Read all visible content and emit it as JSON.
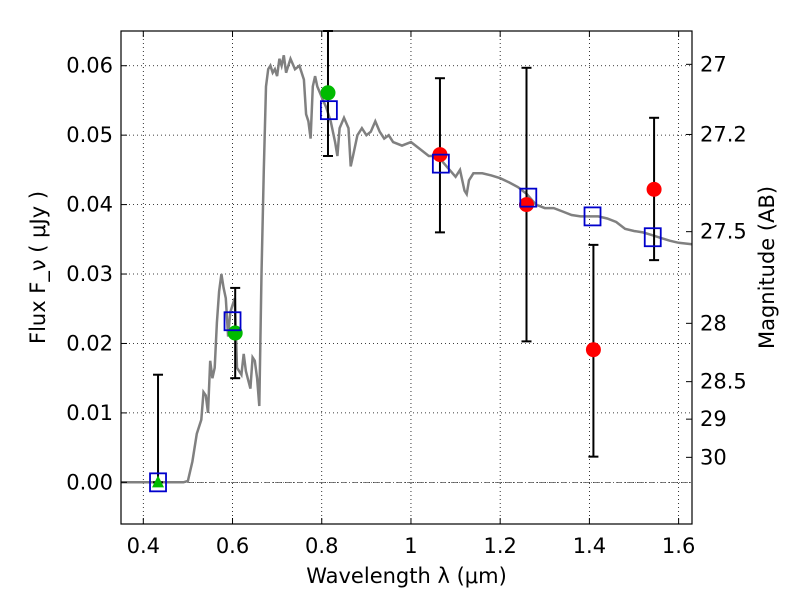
{
  "chart_data": {
    "type": "scatter",
    "xlabel": "Wavelength λ (μm)",
    "ylabel": "Flux F_ν ( μJy )",
    "y2label": "Magnitude (AB)",
    "xlim": [
      0.35,
      1.63
    ],
    "ylim": [
      -0.006,
      0.065
    ],
    "xticks": [
      0.4,
      0.6,
      0.8,
      1.0,
      1.2,
      1.4,
      1.6
    ],
    "xtick_labels": [
      "0.4",
      "0.6",
      "0.8",
      "1",
      "1.2",
      "1.4",
      "1.6"
    ],
    "yticks": [
      0.0,
      0.01,
      0.02,
      0.03,
      0.04,
      0.05,
      0.06
    ],
    "ytick_labels": [
      "0.00",
      "0.01",
      "0.02",
      "0.03",
      "0.04",
      "0.05",
      "0.06"
    ],
    "y2ticks": [
      {
        "flux": 0.0602,
        "label": "27"
      },
      {
        "flux": 0.0501,
        "label": "27.2"
      },
      {
        "flux": 0.0361,
        "label": "27.5"
      },
      {
        "flux": 0.0229,
        "label": "28"
      },
      {
        "flux": 0.0145,
        "label": "28.5"
      },
      {
        "flux": 0.0091,
        "label": "29"
      },
      {
        "flux": 0.0036,
        "label": "30"
      }
    ],
    "grid": true,
    "colors": {
      "spectrum": "#808080",
      "green": "#00bb00",
      "red": "#ff0000",
      "model": "#0000cc",
      "errorbar": "#000000",
      "zero_line": "#555555"
    },
    "spectrum": [
      [
        0.35,
        0.0
      ],
      [
        0.49,
        0.0
      ],
      [
        0.5,
        0.0002
      ],
      [
        0.51,
        0.003
      ],
      [
        0.52,
        0.007
      ],
      [
        0.53,
        0.009
      ],
      [
        0.535,
        0.013
      ],
      [
        0.54,
        0.0125
      ],
      [
        0.545,
        0.01
      ],
      [
        0.55,
        0.0175
      ],
      [
        0.555,
        0.015
      ],
      [
        0.56,
        0.0165
      ],
      [
        0.565,
        0.023
      ],
      [
        0.57,
        0.0275
      ],
      [
        0.575,
        0.03
      ],
      [
        0.58,
        0.028
      ],
      [
        0.585,
        0.0265
      ],
      [
        0.59,
        0.021
      ],
      [
        0.595,
        0.0245
      ],
      [
        0.6,
        0.0255
      ],
      [
        0.605,
        0.0265
      ],
      [
        0.61,
        0.0165
      ],
      [
        0.62,
        0.0155
      ],
      [
        0.625,
        0.0185
      ],
      [
        0.63,
        0.016
      ],
      [
        0.64,
        0.0135
      ],
      [
        0.645,
        0.018
      ],
      [
        0.65,
        0.0175
      ],
      [
        0.655,
        0.015
      ],
      [
        0.66,
        0.011
      ],
      [
        0.665,
        0.03
      ],
      [
        0.67,
        0.045
      ],
      [
        0.675,
        0.057
      ],
      [
        0.68,
        0.0595
      ],
      [
        0.685,
        0.06
      ],
      [
        0.69,
        0.059
      ],
      [
        0.695,
        0.0595
      ],
      [
        0.7,
        0.0585
      ],
      [
        0.705,
        0.061
      ],
      [
        0.71,
        0.06
      ],
      [
        0.715,
        0.0615
      ],
      [
        0.72,
        0.059
      ],
      [
        0.73,
        0.061
      ],
      [
        0.74,
        0.0595
      ],
      [
        0.75,
        0.06
      ],
      [
        0.76,
        0.058
      ],
      [
        0.765,
        0.053
      ],
      [
        0.77,
        0.052
      ],
      [
        0.775,
        0.0495
      ],
      [
        0.78,
        0.057
      ],
      [
        0.785,
        0.0585
      ],
      [
        0.79,
        0.057
      ],
      [
        0.8,
        0.0555
      ],
      [
        0.81,
        0.054
      ],
      [
        0.82,
        0.052
      ],
      [
        0.83,
        0.049
      ],
      [
        0.835,
        0.047
      ],
      [
        0.84,
        0.051
      ],
      [
        0.85,
        0.0525
      ],
      [
        0.86,
        0.051
      ],
      [
        0.865,
        0.0455
      ],
      [
        0.87,
        0.047
      ],
      [
        0.88,
        0.05
      ],
      [
        0.89,
        0.051
      ],
      [
        0.9,
        0.05
      ],
      [
        0.91,
        0.0505
      ],
      [
        0.92,
        0.052
      ],
      [
        0.93,
        0.0505
      ],
      [
        0.94,
        0.0495
      ],
      [
        0.95,
        0.05
      ],
      [
        0.96,
        0.049
      ],
      [
        0.98,
        0.0485
      ],
      [
        1.0,
        0.049
      ],
      [
        1.02,
        0.048
      ],
      [
        1.04,
        0.047
      ],
      [
        1.06,
        0.047
      ],
      [
        1.08,
        0.0455
      ],
      [
        1.1,
        0.044
      ],
      [
        1.11,
        0.045
      ],
      [
        1.12,
        0.042
      ],
      [
        1.125,
        0.0415
      ],
      [
        1.13,
        0.0435
      ],
      [
        1.14,
        0.0445
      ],
      [
        1.16,
        0.0445
      ],
      [
        1.18,
        0.0442
      ],
      [
        1.2,
        0.0438
      ],
      [
        1.22,
        0.0432
      ],
      [
        1.24,
        0.0425
      ],
      [
        1.26,
        0.0415
      ],
      [
        1.28,
        0.04
      ],
      [
        1.3,
        0.0395
      ],
      [
        1.32,
        0.0395
      ],
      [
        1.34,
        0.039
      ],
      [
        1.36,
        0.0385
      ],
      [
        1.38,
        0.0383
      ],
      [
        1.4,
        0.0383
      ],
      [
        1.42,
        0.0383
      ],
      [
        1.44,
        0.038
      ],
      [
        1.46,
        0.0375
      ],
      [
        1.48,
        0.0365
      ],
      [
        1.5,
        0.0362
      ],
      [
        1.52,
        0.036
      ],
      [
        1.54,
        0.0356
      ],
      [
        1.56,
        0.0352
      ],
      [
        1.58,
        0.0348
      ],
      [
        1.6,
        0.0345
      ],
      [
        1.63,
        0.0343
      ]
    ],
    "observations": [
      {
        "x": 0.433,
        "y": 0.0,
        "yerr_low": 0.0,
        "yerr_high": 0.0155,
        "marker": "triangle",
        "color": "green"
      },
      {
        "x": 0.606,
        "y": 0.0215,
        "yerr_low": 0.015,
        "yerr_high": 0.028,
        "marker": "circle",
        "color": "green"
      },
      {
        "x": 0.814,
        "y": 0.0561,
        "yerr_low": 0.047,
        "yerr_high": 0.065,
        "marker": "circle",
        "color": "green"
      },
      {
        "x": 1.065,
        "y": 0.0472,
        "yerr_low": 0.036,
        "yerr_high": 0.0582,
        "marker": "circle",
        "color": "red"
      },
      {
        "x": 1.259,
        "y": 0.04,
        "yerr_low": 0.0203,
        "yerr_high": 0.0597,
        "marker": "circle",
        "color": "red"
      },
      {
        "x": 1.409,
        "y": 0.0191,
        "yerr_low": 0.0037,
        "yerr_high": 0.0342,
        "marker": "circle",
        "color": "red"
      },
      {
        "x": 1.545,
        "y": 0.0422,
        "yerr_low": 0.032,
        "yerr_high": 0.0525,
        "marker": "circle",
        "color": "red"
      }
    ],
    "model_points": [
      {
        "x": 0.433,
        "y": 0.0
      },
      {
        "x": 0.6,
        "y": 0.0232
      },
      {
        "x": 0.816,
        "y": 0.0536
      },
      {
        "x": 1.067,
        "y": 0.0459
      },
      {
        "x": 1.263,
        "y": 0.041
      },
      {
        "x": 1.407,
        "y": 0.0383
      },
      {
        "x": 1.542,
        "y": 0.0353
      }
    ]
  }
}
